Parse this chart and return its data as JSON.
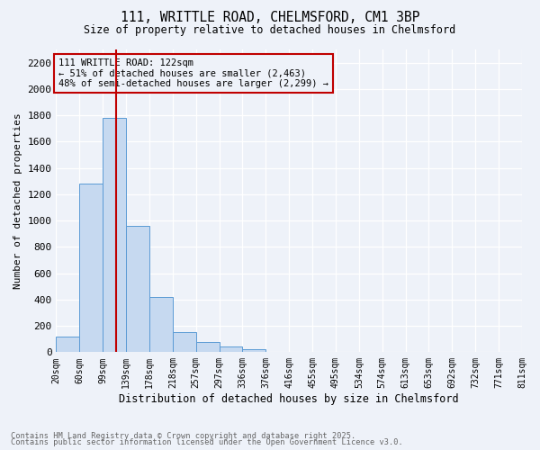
{
  "title_line1": "111, WRITTLE ROAD, CHELMSFORD, CM1 3BP",
  "title_line2": "Size of property relative to detached houses in Chelmsford",
  "xlabel": "Distribution of detached houses by size in Chelmsford",
  "ylabel": "Number of detached properties",
  "annotation_line1": "111 WRITTLE ROAD: 122sqm",
  "annotation_line2": "← 51% of detached houses are smaller (2,463)",
  "annotation_line3": "48% of semi-detached houses are larger (2,299) →",
  "footnote1": "Contains HM Land Registry data © Crown copyright and database right 2025.",
  "footnote2": "Contains public sector information licensed under the Open Government Licence v3.0.",
  "bin_labels": [
    "20sqm",
    "60sqm",
    "99sqm",
    "139sqm",
    "178sqm",
    "218sqm",
    "257sqm",
    "297sqm",
    "336sqm",
    "376sqm",
    "416sqm",
    "455sqm",
    "495sqm",
    "534sqm",
    "574sqm",
    "613sqm",
    "653sqm",
    "692sqm",
    "732sqm",
    "771sqm",
    "811sqm"
  ],
  "counts": [
    120,
    1280,
    1780,
    960,
    420,
    150,
    80,
    40,
    20,
    0,
    0,
    0,
    0,
    0,
    0,
    0,
    0,
    0,
    0,
    0
  ],
  "bar_color": "#c6d9f0",
  "bar_edge_color": "#5b9bd5",
  "vline_color": "#c00000",
  "ylim_max": 2300,
  "yticks": [
    0,
    200,
    400,
    600,
    800,
    1000,
    1200,
    1400,
    1600,
    1800,
    2000,
    2200
  ],
  "annotation_box_edge_color": "#c00000",
  "bg_color": "#eef2f9",
  "grid_color": "#ffffff",
  "footnote_color": "#666666"
}
